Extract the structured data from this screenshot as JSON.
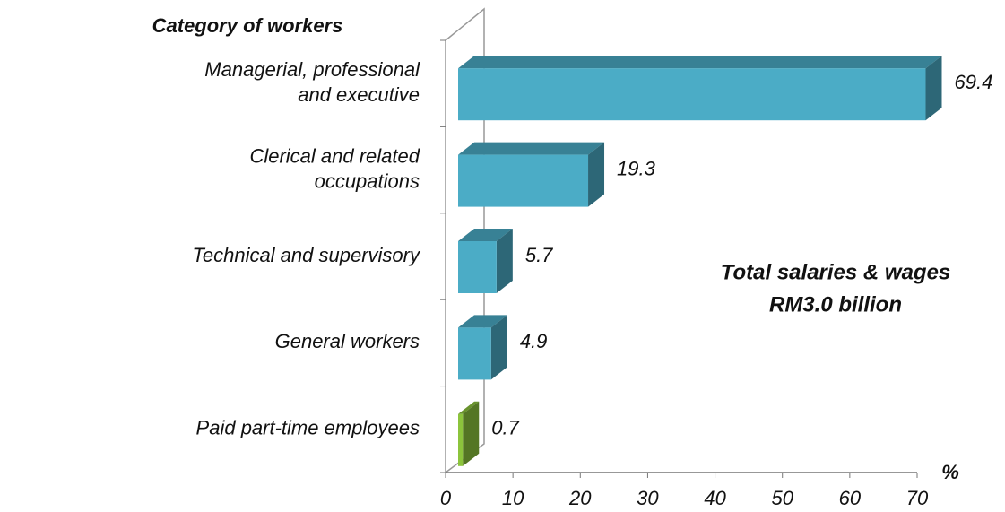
{
  "chart_data": {
    "type": "bar",
    "orientation": "horizontal",
    "y_axis_title": "Category of workers",
    "x_axis_label": "%",
    "categories": [
      "Managerial, professional and executive",
      "Clerical and related occupations",
      "Technical and supervisory",
      "General workers",
      "Paid part-time employees"
    ],
    "values": [
      69.4,
      19.3,
      5.7,
      4.9,
      0.7
    ],
    "colors": [
      "#4bacc6",
      "#4bacc6",
      "#4bacc6",
      "#4bacc6",
      "#8cc43c"
    ],
    "xlim": [
      0,
      70
    ],
    "xticks": [
      0,
      10,
      20,
      30,
      40,
      50,
      60,
      70
    ],
    "annotation": [
      "Total salaries & wages",
      "RM3.0 billion"
    ]
  }
}
